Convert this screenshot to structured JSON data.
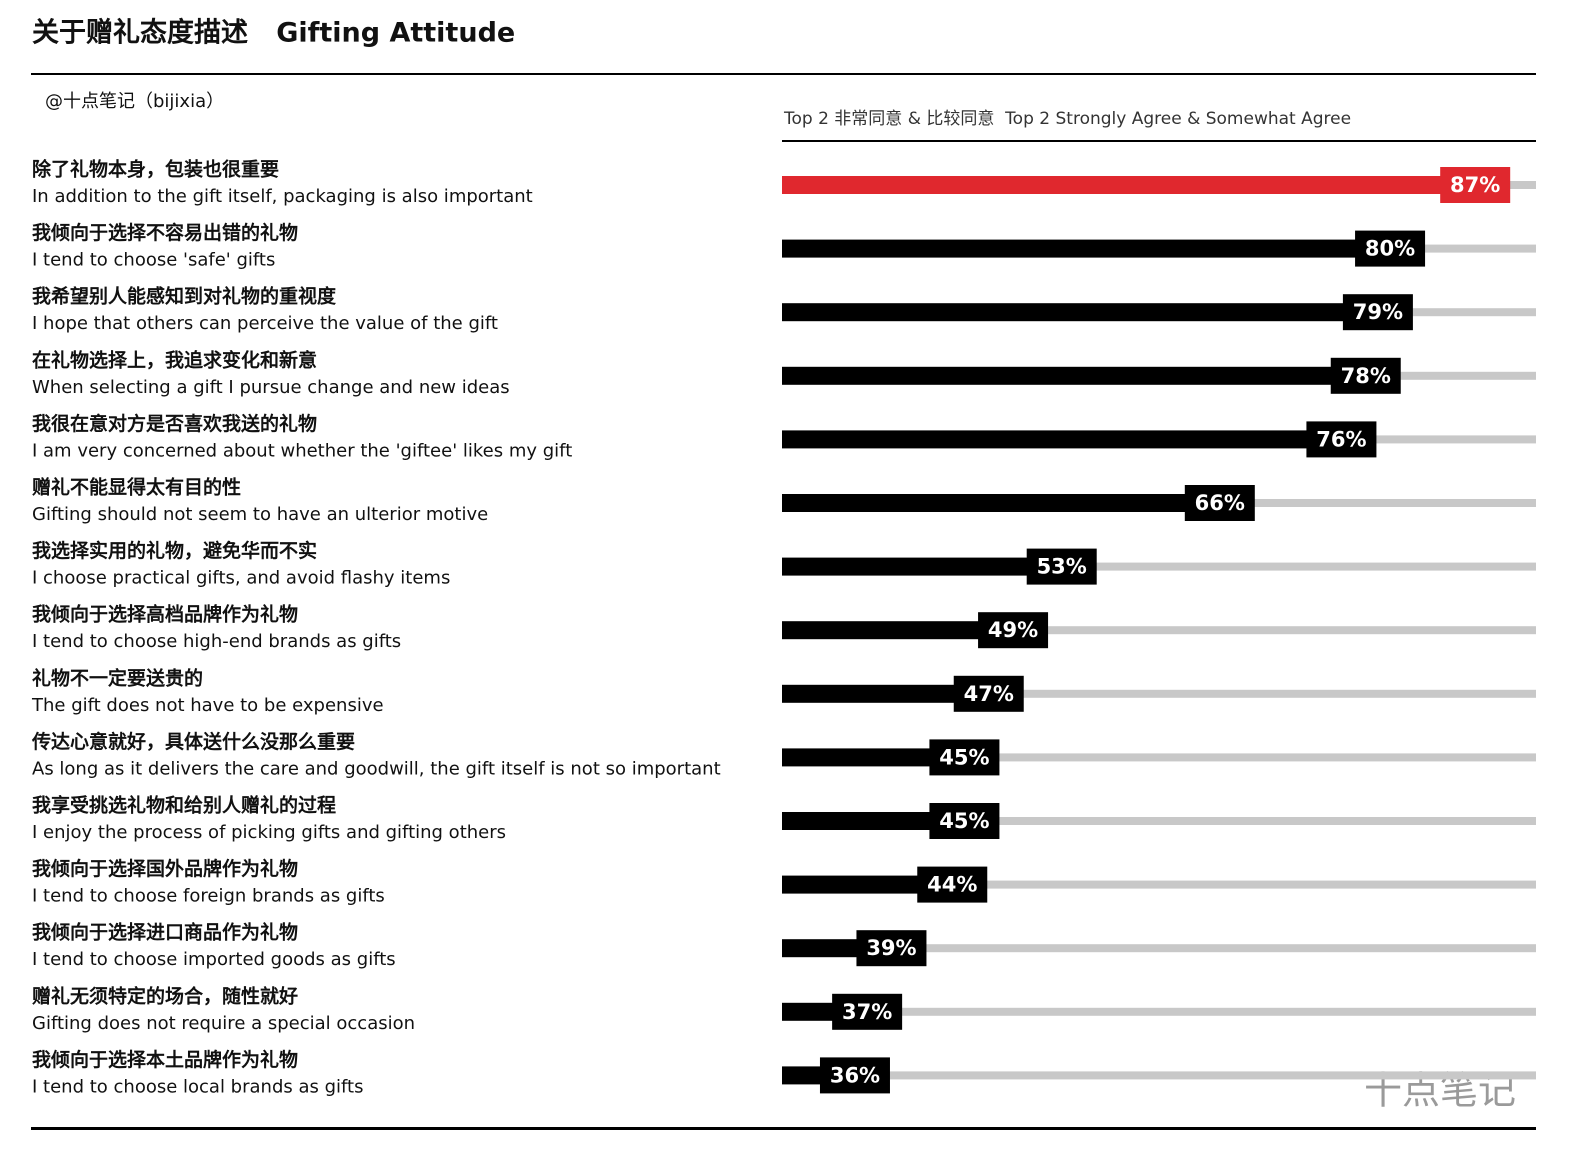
{
  "chart_data": {
    "type": "bar",
    "orientation": "horizontal",
    "title": "关于赠礼态度描述   Gifting Attitude",
    "source": "@十点笔记（bijixia）",
    "value_axis_label": "Top 2 非常同意 & 比较同意  Top 2 Strongly Agree & Somewhat Agree",
    "watermark": "十点笔记",
    "categories": [
      "除了礼物本身，包装也很重要",
      "我倾向于选择不容易出错的礼物",
      "我希望别人能感知到对礼物的重视度",
      "在礼物选择上，我追求变化和新意",
      "我很在意对方是否喜欢我送的礼物",
      "赠礼不能显得太有目的性",
      "我选择实用的礼物，避免华而不实",
      "我倾向于选择高档品牌作为礼物",
      "礼物不一定要送贵的",
      "传达心意就好，具体送什么没那么重要",
      "我享受挑选礼物和给别人赠礼的过程",
      "我倾向于选择国外品牌作为礼物",
      "我倾向于选择进口商品作为礼物",
      "赠礼无须特定的场合，随性就好",
      "我倾向于选择本土品牌作为礼物"
    ],
    "category_translations": [
      "In addition to the gift itself, packaging is also important",
      "I tend to choose 'safe' gifts",
      "I hope that others can perceive the value of the gift",
      "When selecting a gift I pursue change and new ideas",
      "I am very concerned about whether the 'giftee' likes my gift",
      "Gifting should not seem to have an ulterior motive",
      "I choose practical gifts, and avoid flashy items",
      "I tend to choose high-end brands as gifts",
      "The gift does not have to be expensive",
      "As long as it delivers the care and goodwill, the gift itself is not so important",
      "I enjoy the process of picking gifts and gifting others",
      "I tend to choose foreign brands as gifts",
      "I tend to choose imported goods as gifts",
      "Gifting does not require a special occasion",
      "I tend to choose local brands as gifts"
    ],
    "values": [
      87,
      80,
      79,
      78,
      76,
      66,
      53,
      49,
      47,
      45,
      45,
      44,
      39,
      37,
      36
    ],
    "value_labels": [
      "87%",
      "80%",
      "79%",
      "78%",
      "76%",
      "66%",
      "53%",
      "49%",
      "47%",
      "45%",
      "45%",
      "44%",
      "39%",
      "37%",
      "36%"
    ],
    "colors": [
      "#e0282e",
      "#000000",
      "#000000",
      "#000000",
      "#000000",
      "#000000",
      "#000000",
      "#000000",
      "#000000",
      "#000000",
      "#000000",
      "#000000",
      "#000000",
      "#000000",
      "#000000"
    ],
    "track_color": "#c8c8c8",
    "xlim": [
      30,
      92
    ]
  }
}
